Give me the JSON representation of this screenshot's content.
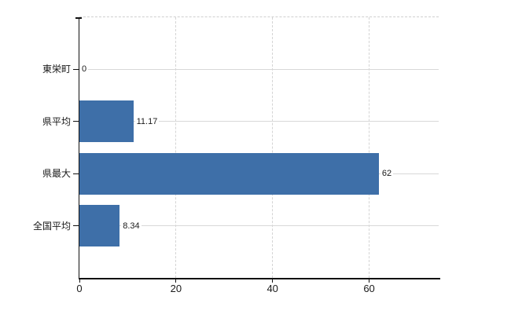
{
  "chart_data": {
    "type": "bar",
    "orientation": "horizontal",
    "title": "",
    "xlabel": "",
    "ylabel": "",
    "categories": [
      "東栄町",
      "県平均",
      "県最大",
      "全国平均"
    ],
    "values": [
      0,
      11.17,
      62,
      8.34
    ],
    "value_labels": [
      "0",
      "11.17",
      "62",
      "8.34"
    ],
    "xticks": [
      "0",
      "20",
      "40",
      "60"
    ],
    "xtick_values": [
      0,
      20,
      40,
      60
    ],
    "xlim": [
      0,
      74.4
    ],
    "legend": "none",
    "grid": "dashed vertical gridlines at x ticks, solid light horizontal line per category, dashed top border",
    "colors": {
      "bar": "#3e6fa8",
      "axis": "#111111",
      "text": "#1a1a1a",
      "gridline": "#d4d4d4",
      "category_line": "#d8d8d8",
      "top_border": "#cfcfcf",
      "background": "#ffffff"
    }
  }
}
